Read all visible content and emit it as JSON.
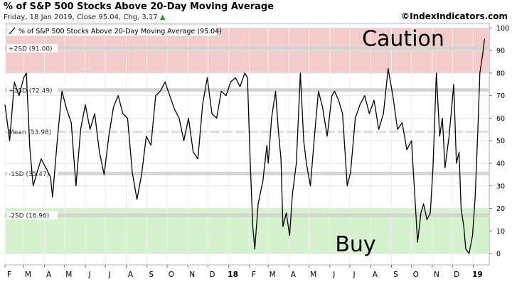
{
  "header": {
    "title": "% of S&P 500 Stocks Above 20-Day Moving Average",
    "subtitle": "Friday, 18 Jan 2019, Close 95.04, Chg. 3.17",
    "copyright": "©IndexIndicators.com"
  },
  "colors": {
    "caution_zone": "#f4cccc",
    "buy_zone": "#d4f2cc",
    "line": "#000000",
    "sd_line": "#d4d4d4",
    "mean_line": "#dcdcdc",
    "change_up": "#2aa02a"
  },
  "chart_data": {
    "type": "line",
    "title": "% of S&P 500 Stocks Above 20-Day Moving Average",
    "legend": "% of S&P 500 Stocks Above 20-Day Moving Average (95.04)",
    "legend_placement": "top-left",
    "ylim": [
      -5,
      102
    ],
    "y_ticks": [
      0,
      10,
      20,
      30,
      40,
      50,
      60,
      70,
      80,
      90,
      100
    ],
    "y_axis_side": "right",
    "grid": true,
    "x_range": [
      "2017-02-01",
      "2019-01-25"
    ],
    "x_ticks": [
      {
        "date": "2017-02-01",
        "label": "F"
      },
      {
        "date": "2017-03-01",
        "label": "M"
      },
      {
        "date": "2017-04-01",
        "label": "A"
      },
      {
        "date": "2017-05-01",
        "label": "M"
      },
      {
        "date": "2017-06-01",
        "label": "J"
      },
      {
        "date": "2017-07-01",
        "label": "J"
      },
      {
        "date": "2017-08-01",
        "label": "A"
      },
      {
        "date": "2017-09-01",
        "label": "S"
      },
      {
        "date": "2017-10-01",
        "label": "O"
      },
      {
        "date": "2017-11-01",
        "label": "N"
      },
      {
        "date": "2017-12-01",
        "label": "D"
      },
      {
        "date": "2018-01-01",
        "label": "18"
      },
      {
        "date": "2018-02-01",
        "label": "F"
      },
      {
        "date": "2018-03-01",
        "label": "M"
      },
      {
        "date": "2018-04-01",
        "label": "A"
      },
      {
        "date": "2018-05-01",
        "label": "M"
      },
      {
        "date": "2018-06-01",
        "label": "J"
      },
      {
        "date": "2018-07-01",
        "label": "J"
      },
      {
        "date": "2018-08-01",
        "label": "A"
      },
      {
        "date": "2018-09-01",
        "label": "S"
      },
      {
        "date": "2018-10-01",
        "label": "O"
      },
      {
        "date": "2018-11-01",
        "label": "N"
      },
      {
        "date": "2018-12-01",
        "label": "D"
      },
      {
        "date": "2019-01-01",
        "label": "19"
      }
    ],
    "bands": [
      {
        "name": "caution",
        "from": 80,
        "to": 100,
        "label": "Caution",
        "color": "#f4cccc"
      },
      {
        "name": "buy",
        "from": 0,
        "to": 20,
        "label": "Buy",
        "color": "#d4f2cc"
      }
    ],
    "reference_lines": [
      {
        "label": "+2SD (91.00)",
        "value": 91.0
      },
      {
        "label": "+1SD (72.49)",
        "value": 72.49
      },
      {
        "label": "Mean (53.98)",
        "value": 53.98
      },
      {
        "label": "-1SD (35.47)",
        "value": 35.47
      },
      {
        "label": "-2SD (16.96)",
        "value": 16.96
      }
    ],
    "series": [
      {
        "name": "% of S&P 500 Stocks Above 20-Day Moving Average",
        "points": [
          [
            "2017-02-01",
            66
          ],
          [
            "2017-02-08",
            50
          ],
          [
            "2017-02-15",
            76
          ],
          [
            "2017-02-22",
            70
          ],
          [
            "2017-03-01",
            78
          ],
          [
            "2017-03-05",
            80
          ],
          [
            "2017-03-10",
            47
          ],
          [
            "2017-03-15",
            30
          ],
          [
            "2017-03-20",
            35
          ],
          [
            "2017-03-27",
            42
          ],
          [
            "2017-04-03",
            38
          ],
          [
            "2017-04-10",
            34
          ],
          [
            "2017-04-13",
            25
          ],
          [
            "2017-04-20",
            50
          ],
          [
            "2017-04-27",
            72
          ],
          [
            "2017-05-04",
            64
          ],
          [
            "2017-05-11",
            58
          ],
          [
            "2017-05-18",
            30
          ],
          [
            "2017-05-25",
            55
          ],
          [
            "2017-06-01",
            66
          ],
          [
            "2017-06-08",
            55
          ],
          [
            "2017-06-15",
            62
          ],
          [
            "2017-06-22",
            45
          ],
          [
            "2017-06-29",
            35
          ],
          [
            "2017-07-06",
            52
          ],
          [
            "2017-07-13",
            65
          ],
          [
            "2017-07-20",
            70
          ],
          [
            "2017-07-27",
            62
          ],
          [
            "2017-08-03",
            60
          ],
          [
            "2017-08-10",
            36
          ],
          [
            "2017-08-17",
            24
          ],
          [
            "2017-08-24",
            35
          ],
          [
            "2017-08-31",
            52
          ],
          [
            "2017-09-07",
            48
          ],
          [
            "2017-09-14",
            70
          ],
          [
            "2017-09-21",
            72
          ],
          [
            "2017-09-28",
            76
          ],
          [
            "2017-10-05",
            70
          ],
          [
            "2017-10-12",
            64
          ],
          [
            "2017-10-19",
            60
          ],
          [
            "2017-10-26",
            50
          ],
          [
            "2017-11-02",
            60
          ],
          [
            "2017-11-09",
            45
          ],
          [
            "2017-11-16",
            42
          ],
          [
            "2017-11-23",
            66
          ],
          [
            "2017-11-30",
            78
          ],
          [
            "2017-12-07",
            62
          ],
          [
            "2017-12-14",
            60
          ],
          [
            "2017-12-21",
            72
          ],
          [
            "2017-12-28",
            70
          ],
          [
            "2018-01-04",
            76
          ],
          [
            "2018-01-11",
            78
          ],
          [
            "2018-01-18",
            74
          ],
          [
            "2018-01-25",
            80
          ],
          [
            "2018-01-29",
            78
          ],
          [
            "2018-02-02",
            42
          ],
          [
            "2018-02-06",
            12
          ],
          [
            "2018-02-09",
            2
          ],
          [
            "2018-02-14",
            22
          ],
          [
            "2018-02-21",
            32
          ],
          [
            "2018-02-27",
            48
          ],
          [
            "2018-03-01",
            40
          ],
          [
            "2018-03-06",
            60
          ],
          [
            "2018-03-12",
            72
          ],
          [
            "2018-03-16",
            55
          ],
          [
            "2018-03-20",
            42
          ],
          [
            "2018-03-23",
            12
          ],
          [
            "2018-03-28",
            18
          ],
          [
            "2018-04-02",
            8
          ],
          [
            "2018-04-06",
            26
          ],
          [
            "2018-04-12",
            40
          ],
          [
            "2018-04-18",
            80
          ],
          [
            "2018-04-23",
            50
          ],
          [
            "2018-04-27",
            40
          ],
          [
            "2018-05-03",
            30
          ],
          [
            "2018-05-09",
            52
          ],
          [
            "2018-05-15",
            72
          ],
          [
            "2018-05-21",
            65
          ],
          [
            "2018-05-28",
            52
          ],
          [
            "2018-06-04",
            70
          ],
          [
            "2018-06-08",
            72
          ],
          [
            "2018-06-14",
            68
          ],
          [
            "2018-06-20",
            62
          ],
          [
            "2018-06-27",
            30
          ],
          [
            "2018-07-02",
            36
          ],
          [
            "2018-07-09",
            60
          ],
          [
            "2018-07-16",
            66
          ],
          [
            "2018-07-23",
            70
          ],
          [
            "2018-07-30",
            62
          ],
          [
            "2018-08-06",
            68
          ],
          [
            "2018-08-13",
            55
          ],
          [
            "2018-08-20",
            62
          ],
          [
            "2018-08-27",
            82
          ],
          [
            "2018-09-03",
            70
          ],
          [
            "2018-09-10",
            55
          ],
          [
            "2018-09-17",
            58
          ],
          [
            "2018-09-24",
            46
          ],
          [
            "2018-10-01",
            50
          ],
          [
            "2018-10-05",
            30
          ],
          [
            "2018-10-10",
            5
          ],
          [
            "2018-10-15",
            18
          ],
          [
            "2018-10-19",
            22
          ],
          [
            "2018-10-24",
            15
          ],
          [
            "2018-10-29",
            18
          ],
          [
            "2018-11-02",
            38
          ],
          [
            "2018-11-07",
            80
          ],
          [
            "2018-11-12",
            52
          ],
          [
            "2018-11-16",
            60
          ],
          [
            "2018-11-20",
            38
          ],
          [
            "2018-11-26",
            52
          ],
          [
            "2018-12-03",
            75
          ],
          [
            "2018-12-07",
            40
          ],
          [
            "2018-12-11",
            45
          ],
          [
            "2018-12-14",
            20
          ],
          [
            "2018-12-18",
            12
          ],
          [
            "2018-12-21",
            2
          ],
          [
            "2018-12-26",
            0
          ],
          [
            "2018-12-31",
            8
          ],
          [
            "2019-01-04",
            25
          ],
          [
            "2019-01-08",
            55
          ],
          [
            "2019-01-11",
            80
          ],
          [
            "2019-01-15",
            88
          ],
          [
            "2019-01-18",
            95.04
          ]
        ]
      }
    ]
  }
}
